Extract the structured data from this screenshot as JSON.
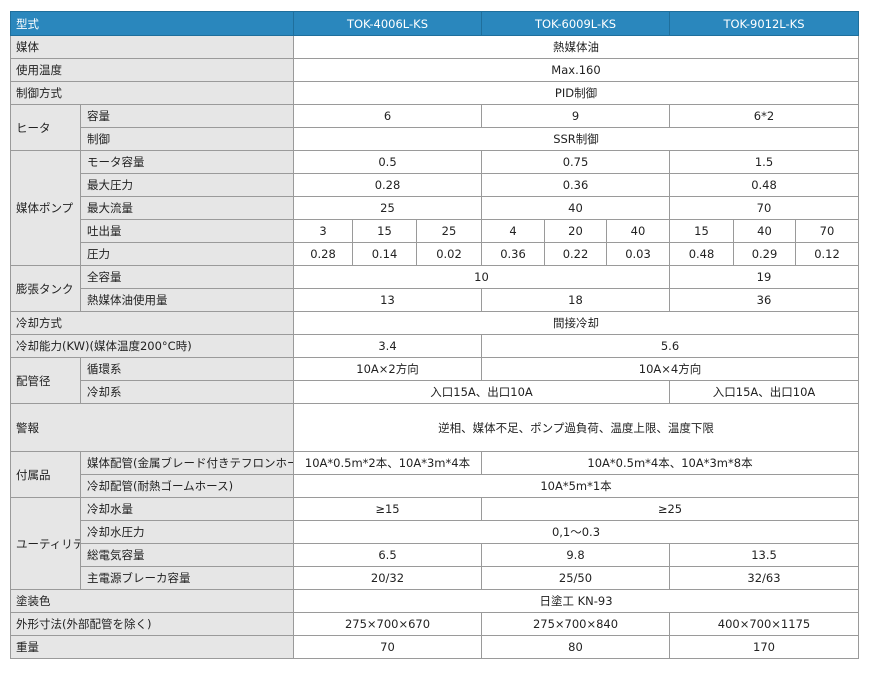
{
  "header": {
    "label": "型式",
    "models": [
      "TOK-4006L-KS",
      "TOK-6009L-KS",
      "TOK-9012L-KS"
    ]
  },
  "medium": {
    "label": "媒体",
    "value": "熱媒体油"
  },
  "temp": {
    "label": "使用温度",
    "value": "Max.160"
  },
  "control": {
    "label": "制御方式",
    "value": "PID制御"
  },
  "heater": {
    "label": "ヒータ",
    "capacity_label": "容量",
    "capacity": [
      "6",
      "9",
      "6*2"
    ],
    "control_label": "制御",
    "control": "SSR制御"
  },
  "pump": {
    "label": "媒体ポンプ",
    "motor_label": "モータ容量",
    "motor": [
      "0.5",
      "0.75",
      "1.5"
    ],
    "max_pressure_label": "最大圧力",
    "max_pressure": [
      "0.28",
      "0.36",
      "0.48"
    ],
    "max_flow_label": "最大流量",
    "max_flow": [
      "25",
      "40",
      "70"
    ],
    "discharge_label": "吐出量",
    "discharge": [
      "3",
      "15",
      "25",
      "4",
      "20",
      "40",
      "15",
      "40",
      "70"
    ],
    "pressure_label": "圧力",
    "pressure": [
      "0.28",
      "0.14",
      "0.02",
      "0.36",
      "0.22",
      "0.03",
      "0.48",
      "0.29",
      "0.12"
    ]
  },
  "tank": {
    "label": "膨張タンク",
    "total_label": "全容量",
    "total": [
      "10",
      "19"
    ],
    "oil_label": "熱媒体油使用量",
    "oil": [
      "13",
      "18",
      "36"
    ]
  },
  "cooling_method": {
    "label": "冷却方式",
    "value": "間接冷却"
  },
  "cooling_capacity": {
    "label": "冷却能力(KW)(媒体温度200°C時)",
    "values": [
      "3.4",
      "5.6"
    ]
  },
  "piping": {
    "label": "配管径",
    "circ_label": "循環系",
    "circ": [
      "10A×2方向",
      "10A×4方向"
    ],
    "cool_label": "冷却系",
    "cool": [
      "入口15A、出口10A",
      "入口15A、出口10A"
    ]
  },
  "alarm": {
    "label": "警報",
    "value": "逆相、媒体不足、ポンプ過負荷、温度上限、温度下限"
  },
  "accessories": {
    "label": "付属品",
    "media_label": "媒体配管(金属ブレード付きテフロンホース)",
    "media": [
      "10A*0.5m*2本、10A*3m*4本",
      "10A*0.5m*4本、10A*3m*8本"
    ],
    "cool_label": "冷却配管(耐熱ゴームホース)",
    "cool": "10A*5m*1本"
  },
  "utility": {
    "label": "ユーティリティ",
    "water_label": "冷却水量",
    "water": [
      "≥15",
      "≥25"
    ],
    "wp_label": "冷却水圧力",
    "wp": "0,1～0.3",
    "power_label": "総電気容量",
    "power": [
      "6.5",
      "9.8",
      "13.5"
    ],
    "breaker_label": "主電源ブレーカ容量",
    "breaker": [
      "20/32",
      "25/50",
      "32/63"
    ]
  },
  "paint": {
    "label": "塗装色",
    "value": "日塗工 KN-93"
  },
  "dims": {
    "label": "外形寸法(外部配管を除く)",
    "values": [
      "275×700×670",
      "275×700×840",
      "400×700×1175"
    ]
  },
  "weight": {
    "label": "重量",
    "values": [
      "70",
      "80",
      "170"
    ]
  },
  "colors": {
    "header_bg": "#2a87bd",
    "label_bg": "#e6e6e6"
  }
}
